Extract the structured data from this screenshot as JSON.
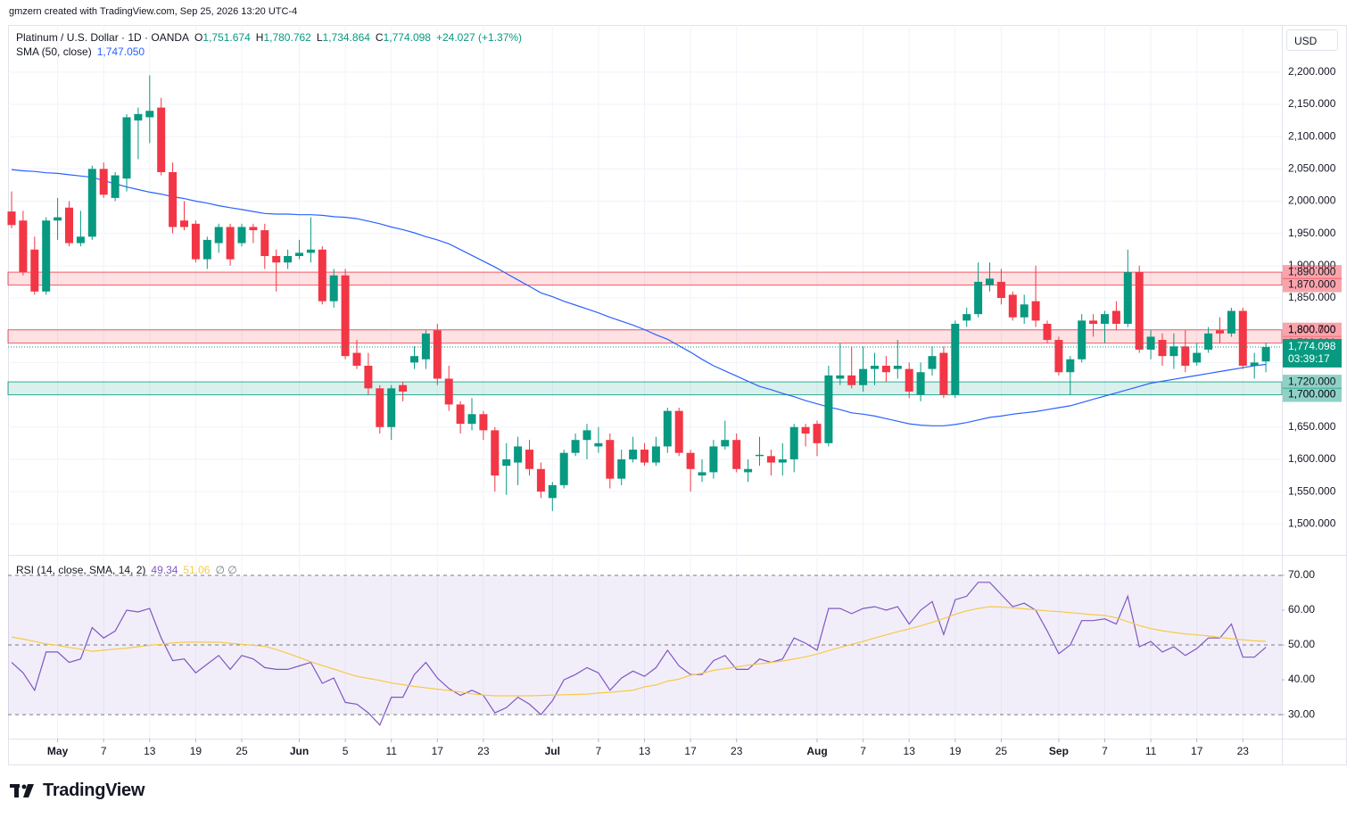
{
  "header": {
    "attribution": "gmzern created with TradingView.com, Sep 25, 2026 13:20 UTC-4",
    "brand": "TradingView"
  },
  "chart_data": [
    {
      "type": "candlestick",
      "title": "Platinum / U.S. Dollar · 1D · OANDA",
      "currency": "USD",
      "ohlc_legend": [
        {
          "key": "O",
          "text": "1,751.674"
        },
        {
          "key": "H",
          "text": "1,780.762"
        },
        {
          "key": "L",
          "text": "1,734.864"
        },
        {
          "key": "C",
          "text": "1,774.098"
        }
      ],
      "change": "+24.027 (+1.37%)",
      "up_color": "#089981",
      "down_color": "#f23645",
      "categories": [
        null,
        null,
        null,
        null,
        "May",
        null,
        null,
        null,
        "7",
        null,
        null,
        null,
        "13",
        null,
        null,
        null,
        "19",
        null,
        null,
        null,
        "25",
        null,
        null,
        null,
        null,
        "Jun",
        null,
        null,
        null,
        "5",
        null,
        null,
        null,
        "11",
        null,
        null,
        null,
        "17",
        null,
        null,
        null,
        "23",
        null,
        null,
        null,
        null,
        null,
        "Jul",
        null,
        null,
        null,
        "7",
        null,
        null,
        null,
        "13",
        null,
        null,
        null,
        "17",
        null,
        null,
        null,
        "23",
        null,
        null,
        null,
        null,
        null,
        null,
        "Aug",
        null,
        null,
        null,
        "7",
        null,
        null,
        null,
        "13",
        null,
        null,
        null,
        "19",
        null,
        null,
        null,
        "25",
        null,
        null,
        null,
        null,
        "Sep",
        null,
        null,
        null,
        "7",
        null,
        null,
        null,
        "11",
        null,
        null,
        null,
        "17",
        null,
        null,
        null,
        "23",
        null,
        null
      ],
      "open": [
        1984,
        1970,
        1925,
        1860,
        1970,
        1990,
        1935,
        1945,
        2050,
        2005,
        2035,
        2125,
        2130,
        2145,
        2045,
        1970,
        1965,
        1910,
        1935,
        1960,
        1935,
        1960,
        1955,
        1915,
        1905,
        1915,
        1920,
        1925,
        1845,
        1885,
        1765,
        1745,
        1710,
        1650,
        1715,
        1750,
        1755,
        1800,
        1725,
        1685,
        1655,
        1670,
        1645,
        1590,
        1595,
        1615,
        1585,
        1540,
        1560,
        1610,
        1630,
        1620,
        1630,
        1570,
        1600,
        1615,
        1595,
        1620,
        1675,
        1610,
        1575,
        1580,
        1620,
        1630,
        1580,
        1605,
        1605,
        1595,
        1600,
        1650,
        1655,
        1625,
        1725,
        1730,
        1715,
        1740,
        1745,
        1740,
        1740,
        1700,
        1740,
        1765,
        1700,
        1815,
        1825,
        1870,
        1875,
        1855,
        1820,
        1845,
        1810,
        1785,
        1735,
        1755,
        1815,
        1810,
        1830,
        1810,
        1890,
        1770,
        1785,
        1760,
        1775,
        1750,
        1770,
        1800,
        1795,
        1830,
        1745,
        1751.674
      ],
      "high": [
        2015,
        1985,
        1945,
        1975,
        2005,
        2000,
        1985,
        2055,
        2060,
        2045,
        2135,
        2145,
        2195,
        2160,
        2060,
        2000,
        1970,
        1945,
        1965,
        1965,
        1965,
        1965,
        1965,
        1925,
        1925,
        1940,
        1975,
        1930,
        1895,
        1895,
        1785,
        1765,
        1715,
        1715,
        1720,
        1775,
        1800,
        1810,
        1745,
        1690,
        1695,
        1675,
        1650,
        1625,
        1635,
        1630,
        1595,
        1565,
        1615,
        1640,
        1655,
        1650,
        1640,
        1615,
        1635,
        1625,
        1635,
        1680,
        1680,
        1615,
        1600,
        1630,
        1660,
        1640,
        1600,
        1635,
        1615,
        1625,
        1655,
        1655,
        1660,
        1745,
        1780,
        1775,
        1775,
        1765,
        1760,
        1785,
        1750,
        1750,
        1775,
        1775,
        1815,
        1835,
        1905,
        1905,
        1895,
        1860,
        1855,
        1900,
        1815,
        1790,
        1760,
        1825,
        1825,
        1830,
        1845,
        1925,
        1900,
        1800,
        1795,
        1795,
        1800,
        1780,
        1805,
        1820,
        1835,
        1835,
        1765,
        1780.762
      ],
      "low": [
        1958,
        1885,
        1855,
        1855,
        1940,
        1930,
        1930,
        1940,
        2005,
        2000,
        2015,
        2065,
        2090,
        2040,
        1950,
        1955,
        1905,
        1895,
        1920,
        1900,
        1930,
        1935,
        1895,
        1860,
        1895,
        1910,
        1905,
        1840,
        1835,
        1755,
        1740,
        1700,
        1640,
        1630,
        1690,
        1740,
        1740,
        1715,
        1675,
        1640,
        1645,
        1630,
        1550,
        1545,
        1560,
        1575,
        1540,
        1520,
        1555,
        1605,
        1600,
        1610,
        1555,
        1560,
        1595,
        1590,
        1590,
        1610,
        1605,
        1550,
        1565,
        1570,
        1615,
        1580,
        1565,
        1590,
        1575,
        1575,
        1580,
        1620,
        1605,
        1620,
        1715,
        1710,
        1705,
        1715,
        1720,
        1725,
        1695,
        1690,
        1730,
        1695,
        1695,
        1805,
        1820,
        1860,
        1840,
        1815,
        1810,
        1805,
        1780,
        1730,
        1700,
        1750,
        1790,
        1780,
        1800,
        1805,
        1765,
        1755,
        1745,
        1740,
        1735,
        1745,
        1765,
        1780,
        1790,
        1740,
        1725,
        1734.864
      ],
      "close": [
        1963,
        1890,
        1860,
        1970,
        1975,
        1935,
        1945,
        2050,
        2010,
        2040,
        2130,
        2135,
        2140,
        2045,
        1960,
        1960,
        1910,
        1940,
        1960,
        1910,
        1960,
        1955,
        1915,
        1905,
        1915,
        1920,
        1925,
        1845,
        1885,
        1760,
        1745,
        1710,
        1650,
        1710,
        1705,
        1760,
        1795,
        1725,
        1685,
        1655,
        1670,
        1645,
        1575,
        1600,
        1620,
        1585,
        1550,
        1560,
        1610,
        1630,
        1645,
        1625,
        1570,
        1600,
        1615,
        1595,
        1620,
        1675,
        1610,
        1585,
        1580,
        1620,
        1630,
        1585,
        1585,
        1607,
        1595,
        1600,
        1650,
        1640,
        1625,
        1730,
        1730,
        1715,
        1740,
        1745,
        1735,
        1745,
        1705,
        1735,
        1760,
        1700,
        1810,
        1825,
        1875,
        1880,
        1850,
        1820,
        1840,
        1815,
        1785,
        1735,
        1755,
        1815,
        1810,
        1825,
        1810,
        1890,
        1770,
        1790,
        1760,
        1775,
        1745,
        1765,
        1795,
        1795,
        1830,
        1745,
        1750,
        1774.098
      ],
      "last_label": "1,774.098",
      "countdown": "03:39:17",
      "series": [
        {
          "name": "SMA (50, close)",
          "color": "#2962ff",
          "legend_value": "1,747.050",
          "values": [
            2049,
            2047,
            2046,
            2044,
            2043,
            2041,
            2039,
            2037,
            2032,
            2027,
            2022,
            2018,
            2014,
            2011,
            2007,
            2004,
            2000,
            1997,
            1993,
            1990,
            1987,
            1984,
            1981,
            1980,
            1980,
            1979,
            1979,
            1978,
            1976,
            1975,
            1973,
            1969,
            1965,
            1960,
            1956,
            1951,
            1945,
            1940,
            1934,
            1925,
            1916,
            1907,
            1898,
            1888,
            1878,
            1868,
            1858,
            1852,
            1845,
            1839,
            1833,
            1827,
            1820,
            1814,
            1808,
            1801,
            1793,
            1786,
            1776,
            1766,
            1755,
            1745,
            1737,
            1729,
            1721,
            1713,
            1708,
            1702,
            1697,
            1691,
            1686,
            1681,
            1677,
            1672,
            1670,
            1667,
            1663,
            1659,
            1655,
            1653,
            1652,
            1652,
            1654,
            1657,
            1661,
            1665,
            1667,
            1670,
            1672,
            1674,
            1677,
            1680,
            1683,
            1688,
            1693,
            1698,
            1703,
            1708,
            1713,
            1718,
            1721,
            1724,
            1727,
            1730,
            1733,
            1736,
            1739,
            1742,
            1745,
            1747.05
          ]
        }
      ],
      "zones": [
        {
          "values": [
            1890,
            1870
          ],
          "labels": [
            "1,890.000",
            "1,870.000"
          ],
          "color": "#f23645"
        },
        {
          "values": [
            1800.7,
            1780.031
          ],
          "labels": [
            "1,800.700",
            "1,780.031"
          ],
          "color": "#f23645"
        },
        {
          "values": [
            1720,
            1700
          ],
          "labels": [
            "1,720.000",
            "1,700.000"
          ],
          "color": "#089981"
        }
      ],
      "ylim": [
        1452,
        2273
      ],
      "yticks": [
        {
          "value": 1500,
          "label": "1,500.000"
        },
        {
          "value": 1550,
          "label": "1,550.000"
        },
        {
          "value": 1600,
          "label": "1,600.000"
        },
        {
          "value": 1650,
          "label": "1,650.000"
        },
        {
          "value": 1700,
          "label": "1,700.000"
        },
        {
          "value": 1750,
          "label": "1,750.000"
        },
        {
          "value": 1800,
          "label": "1,800.000"
        },
        {
          "value": 1850,
          "label": "1,850.000"
        },
        {
          "value": 1900,
          "label": "1,900.000"
        },
        {
          "value": 1950,
          "label": "1,950.000"
        },
        {
          "value": 2000,
          "label": "2,000.000"
        },
        {
          "value": 2050,
          "label": "2,050.000"
        },
        {
          "value": 2100,
          "label": "2,100.000"
        },
        {
          "value": 2150,
          "label": "2,150.000"
        },
        {
          "value": 2200,
          "label": "2,200.000"
        }
      ],
      "grid": true
    },
    {
      "type": "line",
      "title": "RSI (14, close, SMA, 14, 2)",
      "extra": "∅ ∅",
      "series": [
        {
          "color": "#7e57c2",
          "legend_value": "49.34",
          "values": [
            45,
            42,
            37,
            48,
            48,
            45,
            46,
            55,
            52,
            54,
            60,
            59.5,
            60.5,
            52,
            45.5,
            46,
            42,
            44.5,
            47,
            43,
            47,
            46,
            43.5,
            43,
            43,
            44,
            45,
            39,
            40.5,
            33.5,
            33,
            30.5,
            27,
            35,
            35,
            41.5,
            45,
            40.5,
            37.5,
            35.5,
            37,
            35.5,
            30.5,
            32,
            35,
            33,
            30,
            34,
            40,
            41.5,
            43.5,
            42,
            37,
            40.5,
            42.5,
            41,
            43.5,
            48.5,
            44,
            41.5,
            41.5,
            45.5,
            47,
            43,
            43,
            46,
            45,
            46,
            52,
            50.5,
            48.5,
            60.5,
            60.5,
            59,
            60.5,
            61,
            60,
            61,
            56,
            60,
            62.5,
            53,
            63,
            64,
            68,
            68,
            64.5,
            61,
            62,
            60,
            54,
            47.5,
            50,
            57,
            57,
            57.5,
            56,
            64,
            49.5,
            51,
            48,
            49.5,
            47,
            49,
            52,
            52,
            56,
            46.5,
            46.5,
            49.34
          ]
        },
        {
          "color": "#f7c948",
          "legend_value": "51.06",
          "values": [
            52.3,
            51.7,
            51.0,
            50.3,
            49.9,
            49.3,
            48.8,
            48.2,
            48.5,
            48.8,
            49.1,
            49.5,
            49.9,
            50.2,
            50.6,
            50.8,
            50.8,
            50.8,
            50.8,
            50.5,
            50.2,
            49.9,
            49.6,
            48.7,
            47.6,
            46.4,
            45.2,
            44.1,
            43.1,
            42.0,
            41.0,
            40.4,
            39.8,
            39.1,
            38.6,
            38.1,
            37.7,
            37.3,
            36.9,
            36.5,
            36.0,
            35.6,
            35.4,
            35.4,
            35.4,
            35.4,
            35.5,
            35.6,
            35.7,
            35.8,
            35.9,
            36.2,
            36.4,
            36.7,
            37.0,
            38.0,
            38.5,
            39.6,
            40.2,
            41.3,
            41.9,
            42.7,
            43.2,
            43.7,
            44.2,
            44.6,
            45.0,
            45.4,
            46.0,
            46.6,
            47.4,
            48.4,
            49.3,
            50.2,
            51.0,
            52.0,
            52.9,
            53.8,
            54.6,
            55.5,
            56.5,
            57.6,
            58.8,
            59.8,
            60.5,
            61.0,
            60.9,
            60.7,
            60.4,
            60.1,
            59.8,
            59.6,
            59.3,
            59.0,
            58.7,
            58.5,
            57.8,
            56.7,
            55.6,
            54.7,
            54.1,
            53.6,
            53.2,
            52.9,
            52.6,
            52.2,
            51.8,
            51.5,
            51.2,
            51.06
          ]
        }
      ],
      "bands": [
        70,
        50,
        30
      ],
      "band_color": "#7e57c2",
      "ylim": [
        23.1,
        75.9
      ],
      "yticks": [
        {
          "value": 30,
          "label": "30.00"
        },
        {
          "value": 40,
          "label": "40.00"
        },
        {
          "value": 50,
          "label": "50.00"
        },
        {
          "value": 60,
          "label": "60.00"
        },
        {
          "value": 70,
          "label": "70.00"
        }
      ]
    }
  ]
}
